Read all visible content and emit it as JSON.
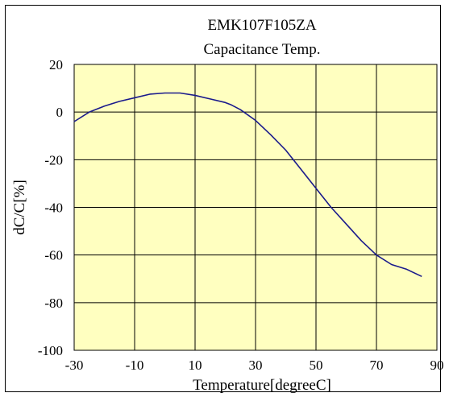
{
  "chart_data": {
    "type": "line",
    "title": "EMK107F105ZA",
    "subtitle": "Capacitance Temp.",
    "xlabel": "Temperature[degreeC]",
    "ylabel": "dC/C[%]",
    "xlim": [
      -30,
      90
    ],
    "ylim": [
      -100,
      20
    ],
    "xticks": [
      -30,
      -10,
      10,
      30,
      50,
      70,
      90
    ],
    "yticks": [
      20,
      0,
      -20,
      -40,
      -60,
      -80,
      -100
    ],
    "grid": true,
    "legend": "none",
    "colors": {
      "plot_bg": "#ffffc0",
      "line": "#1a1a8c",
      "grid": "#000000"
    },
    "series": [
      {
        "x": [
          -30,
          -25,
          -20,
          -15,
          -10,
          -5,
          0,
          5,
          10,
          15,
          20,
          22,
          25,
          30,
          35,
          40,
          45,
          50,
          55,
          60,
          65,
          70,
          75,
          80,
          85
        ],
        "y": [
          -4,
          0,
          2.5,
          4.5,
          6,
          7.5,
          8,
          8,
          7,
          5.5,
          4,
          3,
          1,
          -3.5,
          -9.5,
          -16,
          -24,
          -32,
          -40,
          -47,
          -54,
          -60,
          -64,
          -66,
          -69
        ]
      }
    ]
  }
}
